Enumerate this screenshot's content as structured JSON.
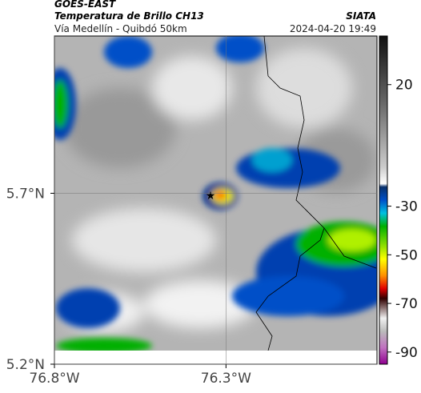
{
  "map": {
    "source": "GOES-EAST",
    "title": "Temperatura de Brillo CH13",
    "organization": "SIATA",
    "route": "Vía Medellín - Quibdó 50km",
    "datetime": "2024-04-20 19:49",
    "xlim": [
      -76.8,
      -75.86
    ],
    "ylim": [
      5.2,
      6.16
    ],
    "xticks": [
      {
        "value": -76.8,
        "label": "76.8°W"
      },
      {
        "value": -76.3,
        "label": "76.3°W"
      }
    ],
    "yticks": [
      {
        "value": 5.2,
        "label": "5.2°N"
      },
      {
        "value": 5.7,
        "label": "5.7°N"
      }
    ],
    "colorbar": {
      "lim": [
        -95,
        40
      ],
      "ticks": [
        20,
        -30,
        -50,
        -70,
        -90
      ]
    }
  }
}
